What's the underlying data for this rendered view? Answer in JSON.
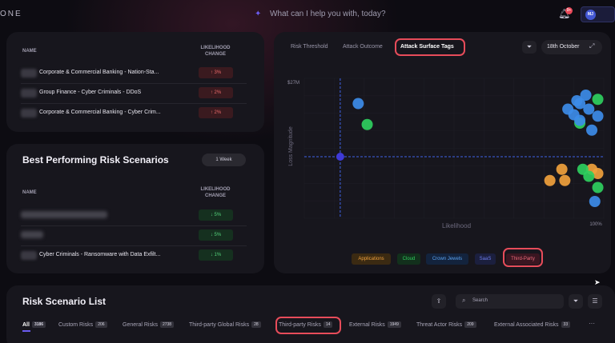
{
  "brand": "ONE",
  "assistant": {
    "placeholder": "What can I help you with, today?"
  },
  "notifications": {
    "count": "9+"
  },
  "user": {
    "initials": "MJ"
  },
  "top_risks": {
    "columns": [
      "NAME",
      "LIKELIHOOD CHANGE"
    ],
    "rows": [
      {
        "name": "Corporate & Commercial Banking - Nation-Sta...",
        "change": "↑ 3%",
        "direction": "up"
      },
      {
        "name": "Group Finance - Cyber Criminals - DDoS",
        "change": "↑ 2%",
        "direction": "up"
      },
      {
        "name": "Corporate & Commercial Banking - Cyber Crim...",
        "change": "↑ 2%",
        "direction": "up"
      }
    ]
  },
  "best_performing": {
    "title": "Best Performing Risk Scenarios",
    "period": "1 Week",
    "columns": [
      "NAME",
      "LIKELIHOOD CHANGE"
    ],
    "rows": [
      {
        "name": "",
        "change": "↓ 5%",
        "direction": "down"
      },
      {
        "name": "",
        "change": "↓ 5%",
        "direction": "down"
      },
      {
        "name": "Cyber Criminals - Ransomware with Data Exfilt...",
        "change": "↓ 1%",
        "direction": "down"
      }
    ]
  },
  "matrix": {
    "tabs": [
      "Risk Threshold",
      "Attack Outcome",
      "Attack Surface Tags"
    ],
    "active_tab": "Attack Surface Tags",
    "date": "18th October",
    "chart_data": {
      "type": "scatter",
      "xlabel": "Likelihood",
      "ylabel": "Loss Magnitude",
      "y_tick": "$27M",
      "x_tick": "100%",
      "xlim": [
        0,
        100
      ],
      "threshold": {
        "x": 12,
        "y": 44
      },
      "series": [
        {
          "name": "Applications",
          "color": "#f0a13c",
          "points": [
            [
              82,
              27
            ],
            [
              86,
              35
            ],
            [
              87,
              27
            ],
            [
              96,
              35
            ],
            [
              98,
              32
            ]
          ]
        },
        {
          "name": "Cloud",
          "color": "#2fcf5e",
          "points": [
            [
              21,
              67
            ],
            [
              92,
              68
            ],
            [
              98,
              85
            ],
            [
              93,
              35
            ],
            [
              98,
              22
            ],
            [
              95,
              30
            ]
          ]
        },
        {
          "name": "Crown Jewels",
          "color": "#3d8ce8",
          "points": [
            [
              18,
              82
            ],
            [
              88,
              78
            ],
            [
              91,
              84
            ],
            [
              90,
              74
            ],
            [
              92,
              70
            ],
            [
              95,
              78
            ],
            [
              98,
              73
            ],
            [
              96,
              63
            ],
            [
              94,
              88
            ],
            [
              97,
              12
            ],
            [
              92,
              82
            ]
          ]
        },
        {
          "name": "SaaS",
          "color": "#4a5bd8",
          "points": []
        },
        {
          "name": "Third-Party",
          "color": "#e74c5a",
          "points": []
        }
      ]
    },
    "tags": [
      {
        "label": "Applications",
        "bg": "#3b2a12",
        "fg": "#f0a13c"
      },
      {
        "label": "Cloud",
        "bg": "#12301c",
        "fg": "#2fcf5e"
      },
      {
        "label": "Crown Jewels",
        "bg": "#13233d",
        "fg": "#5aa2f0"
      },
      {
        "label": "SaaS",
        "bg": "#1b1f3e",
        "fg": "#6f7ff0"
      },
      {
        "label": "Third-Party",
        "bg": "#3a1621",
        "fg": "#ee6b7b"
      }
    ]
  },
  "risk_list": {
    "title": "Risk Scenario List",
    "search_placeholder": "Search",
    "filters": [
      {
        "label": "All",
        "count": "3186"
      },
      {
        "label": "Custom Risks",
        "count": "206"
      },
      {
        "label": "General Risks",
        "count": "2738"
      },
      {
        "label": "Third-party Global Risks",
        "count": "28"
      },
      {
        "label": "Third-party Risks",
        "count": "14"
      },
      {
        "label": "External Risks",
        "count": "1949"
      },
      {
        "label": "Threat Actor Risks",
        "count": "209"
      },
      {
        "label": "External Associated Risks",
        "count": "33"
      }
    ],
    "more": "···"
  }
}
